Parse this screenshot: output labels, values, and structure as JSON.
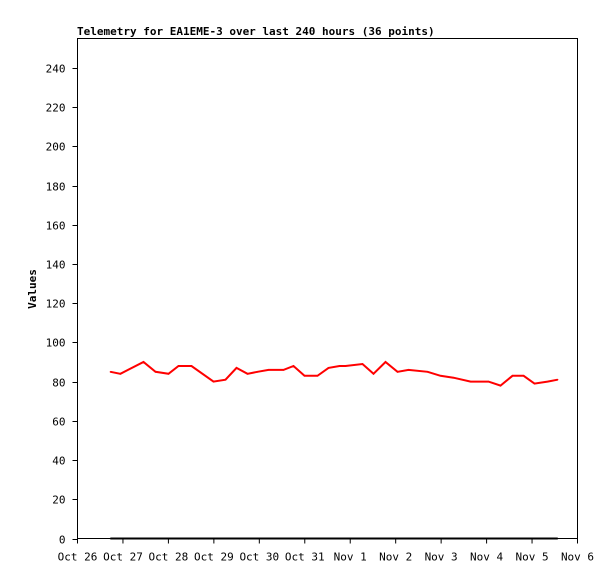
{
  "chart_data": {
    "type": "line",
    "title": "Telemetry for EA1EME-3 over last 240 hours (36 points)",
    "xlabel": "",
    "ylabel": "Values",
    "x_tick_labels": [
      "Oct 26",
      "Oct 27",
      "Oct 28",
      "Oct 29",
      "Oct 30",
      "Oct 31",
      "Nov 1",
      "Nov 2",
      "Nov 3",
      "Nov 4",
      "Nov 5",
      "Nov 6"
    ],
    "y_ticks": [
      0,
      20,
      40,
      60,
      80,
      100,
      120,
      140,
      160,
      180,
      200,
      220,
      240
    ],
    "xlim": [
      "Oct 26 00:00",
      "Nov 6 00:00"
    ],
    "ylim": [
      0,
      255
    ],
    "grid": false,
    "x": [
      "Oct 26 17:25",
      "Oct 26 22:40",
      "Oct 27 10:50",
      "Oct 27 17:11",
      "Oct 28 00:03",
      "Oct 28 05:20",
      "Oct 28 12:11",
      "Oct 28 23:48",
      "Oct 29 06:09",
      "Oct 29 11:57",
      "Oct 29 17:46",
      "Oct 29 23:02",
      "Oct 30 04:50",
      "Oct 30 12:46",
      "Oct 30 18:03",
      "Oct 30 23:51",
      "Oct 31 06:43",
      "Oct 31 12:31",
      "Oct 31 18:20",
      "Oct 31 21:30",
      "Nov 1 06:29",
      "Nov 1 12:18",
      "Nov 1 18:39",
      "Nov 2 00:59",
      "Nov 2 06:47",
      "Nov 2 16:50",
      "Nov 2 23:41",
      "Nov 3 06:33",
      "Nov 3 15:32",
      "Nov 4 01:02",
      "Nov 4 07:22",
      "Nov 4 13:42",
      "Nov 4 19:31",
      "Nov 5 01:19",
      "Nov 5 08:11",
      "Nov 5 13:28"
    ],
    "series": [
      {
        "color": "#ff0000",
        "values": [
          85,
          84,
          90,
          85,
          84,
          88,
          88,
          80,
          81,
          87,
          84,
          85,
          86,
          86,
          88,
          83,
          83,
          87,
          88,
          88,
          89,
          84,
          90,
          85,
          86,
          85,
          83,
          82,
          80,
          80,
          78,
          83,
          83,
          79,
          80,
          81
        ]
      },
      {
        "color": "#000000",
        "values": [
          0,
          0,
          0,
          0,
          0,
          0,
          0,
          0,
          0,
          0,
          0,
          0,
          0,
          0,
          0,
          0,
          0,
          0,
          0,
          0,
          0,
          0,
          0,
          0,
          0,
          0,
          0,
          0,
          0,
          0,
          0,
          0,
          0,
          0,
          0,
          0
        ]
      }
    ]
  }
}
